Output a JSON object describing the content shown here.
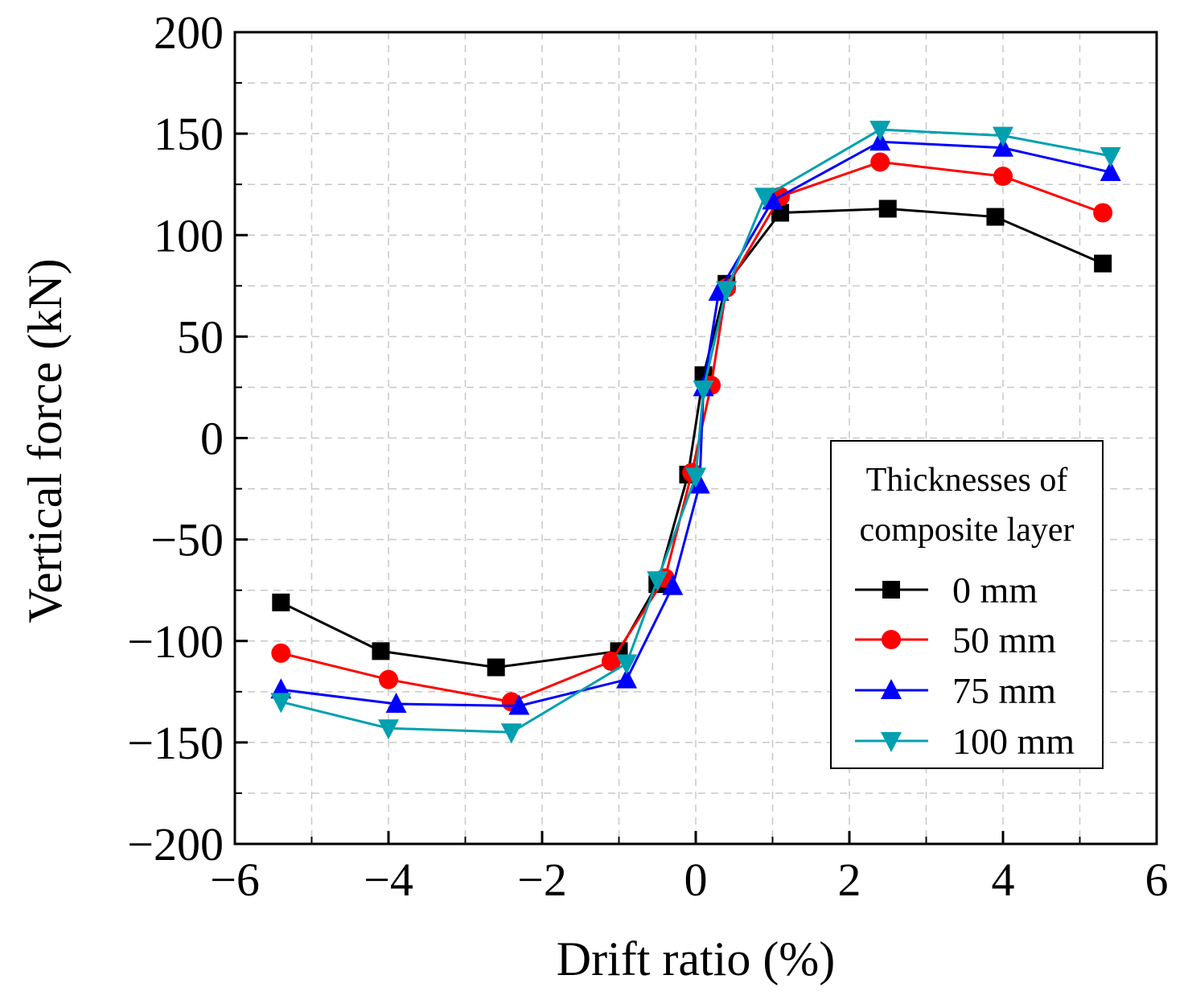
{
  "chart_data": {
    "type": "line",
    "xlabel": "Drift ratio (%)",
    "ylabel": "Vertical force (kN)",
    "xlim": [
      -6,
      6
    ],
    "ylim": [
      -200,
      200
    ],
    "xticks": [
      -6,
      -4,
      -2,
      0,
      2,
      4,
      6
    ],
    "yticks": [
      -200,
      -150,
      -100,
      -50,
      0,
      50,
      100,
      150,
      200
    ],
    "x_tick_labels": [
      "−6",
      "−4",
      "−2",
      "0",
      "2",
      "4",
      "6"
    ],
    "y_tick_labels": [
      "−200",
      "−150",
      "−100",
      "−50",
      "0",
      "50",
      "100",
      "150",
      "200"
    ],
    "grid": true,
    "legend": {
      "title_lines": [
        "Thicknesses of",
        "composite layer"
      ],
      "placement": "lower-right"
    },
    "series": [
      {
        "name": "0 mm",
        "color": "#000000",
        "marker": "square",
        "points": [
          [
            -5.4,
            -81
          ],
          [
            -4.1,
            -105
          ],
          [
            -2.6,
            -113
          ],
          [
            -1.0,
            -105
          ],
          [
            -0.5,
            -72
          ],
          [
            -0.1,
            -18
          ],
          [
            0.1,
            31
          ],
          [
            0.4,
            76
          ],
          [
            1.1,
            111
          ],
          [
            2.5,
            113
          ],
          [
            3.9,
            109
          ],
          [
            5.3,
            86
          ]
        ]
      },
      {
        "name": "50 mm",
        "color": "#ff0000",
        "marker": "circle",
        "points": [
          [
            -5.4,
            -106
          ],
          [
            -4.0,
            -119
          ],
          [
            -2.4,
            -130
          ],
          [
            -1.1,
            -110
          ],
          [
            -0.4,
            -69
          ],
          [
            -0.05,
            -17
          ],
          [
            0.2,
            26
          ],
          [
            0.4,
            74
          ],
          [
            1.1,
            119
          ],
          [
            2.4,
            136
          ],
          [
            4.0,
            129
          ],
          [
            5.3,
            111
          ]
        ]
      },
      {
        "name": "75 mm",
        "color": "#0000ff",
        "marker": "triangle-up",
        "points": [
          [
            -5.4,
            -124
          ],
          [
            -3.9,
            -131
          ],
          [
            -2.3,
            -132
          ],
          [
            -0.9,
            -119
          ],
          [
            -0.3,
            -73
          ],
          [
            0.05,
            -23
          ],
          [
            0.1,
            25
          ],
          [
            0.3,
            72
          ],
          [
            1.0,
            117
          ],
          [
            2.4,
            146
          ],
          [
            4.0,
            143
          ],
          [
            5.4,
            131
          ]
        ]
      },
      {
        "name": "100 mm",
        "color": "#00a0b0",
        "marker": "triangle-down",
        "points": [
          [
            -5.4,
            -130
          ],
          [
            -4.0,
            -143
          ],
          [
            -2.4,
            -145
          ],
          [
            -0.9,
            -111
          ],
          [
            -0.5,
            -70
          ],
          [
            0.0,
            -19
          ],
          [
            0.1,
            24
          ],
          [
            0.4,
            73
          ],
          [
            0.9,
            119
          ],
          [
            2.4,
            152
          ],
          [
            4.0,
            149
          ],
          [
            5.4,
            139
          ]
        ]
      }
    ]
  }
}
